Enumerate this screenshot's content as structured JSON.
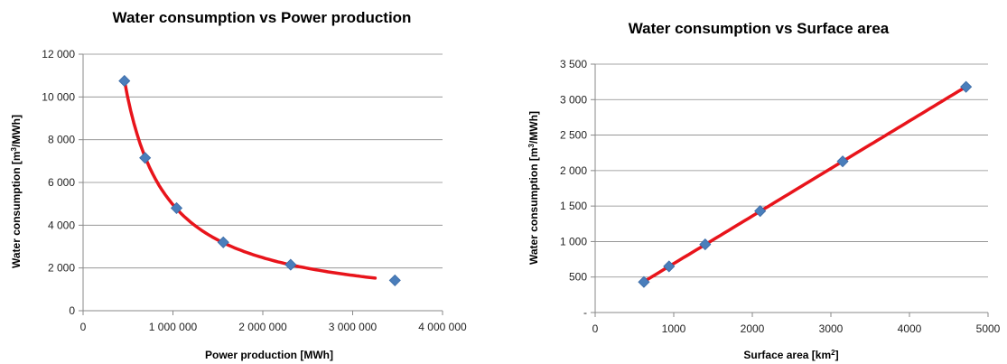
{
  "colors": {
    "marker": "#4a7ebb",
    "trend": "#e8141b",
    "grid": "#888888"
  },
  "chart_data": [
    {
      "type": "scatter",
      "title": "Water consumption vs Power production",
      "xlabel": "Power production  [MWh]",
      "ylabel_pre": "Water consumption  [m",
      "ylabel_sup": "3",
      "ylabel_post": "/MWh]",
      "xlim": [
        0,
        4000000
      ],
      "ylim": [
        0,
        12000
      ],
      "xticks": [
        0,
        1000000,
        2000000,
        3000000,
        4000000
      ],
      "xtick_labels": [
        "0",
        "1 000 000",
        "2 000 000",
        "3 000 000",
        "4 000 000"
      ],
      "yticks": [
        0,
        2000,
        4000,
        6000,
        8000,
        10000,
        12000
      ],
      "ytick_labels": [
        "0",
        "2 000",
        "4 000",
        "6 000",
        "8 000",
        "10 000",
        "12 000"
      ],
      "grid": true,
      "points": [
        {
          "x": 460000,
          "y": 10750
        },
        {
          "x": 690000,
          "y": 7150
        },
        {
          "x": 1040000,
          "y": 4800
        },
        {
          "x": 1560000,
          "y": 3200
        },
        {
          "x": 2310000,
          "y": 2150
        },
        {
          "x": 3470000,
          "y": 1420
        }
      ],
      "trendline": {
        "type": "power",
        "x_from": 460000,
        "x_to": 3250000
      }
    },
    {
      "type": "scatter",
      "title": "Water consumption vs Surface area",
      "xlabel_pre": "Surface area [km",
      "xlabel_sup": "2",
      "xlabel_post": "]",
      "ylabel_pre": "Water consumption  [m",
      "ylabel_sup": "3",
      "ylabel_post": "/MWh]",
      "xlim": [
        0,
        5000
      ],
      "ylim": [
        0,
        3500
      ],
      "xticks": [
        0,
        1000,
        2000,
        3000,
        4000,
        5000
      ],
      "xtick_labels": [
        "0",
        "1000",
        "2000",
        "3000",
        "4000",
        "5000"
      ],
      "yticks": [
        0,
        500,
        1000,
        1500,
        2000,
        2500,
        3000,
        3500
      ],
      "ytick_labels": [
        "-",
        "500",
        "1 000",
        "1 500",
        "2 000",
        "2 500",
        "3 000",
        "3 500"
      ],
      "grid": true,
      "points": [
        {
          "x": 620,
          "y": 430
        },
        {
          "x": 940,
          "y": 650
        },
        {
          "x": 1400,
          "y": 960
        },
        {
          "x": 2100,
          "y": 1430
        },
        {
          "x": 3150,
          "y": 2130
        },
        {
          "x": 4720,
          "y": 3180
        }
      ],
      "trendline": {
        "type": "linear",
        "x_from": 620,
        "x_to": 4720
      }
    }
  ]
}
